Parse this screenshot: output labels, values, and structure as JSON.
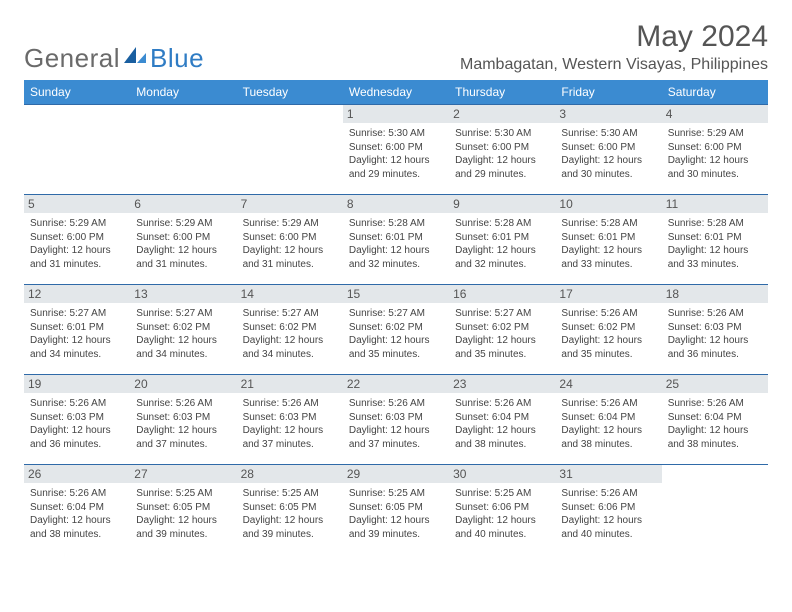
{
  "brand": {
    "part1": "General",
    "part2": "Blue"
  },
  "title": "May 2024",
  "location": "Mambagatan, Western Visayas, Philippines",
  "colors": {
    "header_bg": "#3b8bd1",
    "header_text": "#ffffff",
    "daynum_bg": "#e3e7ea",
    "row_border": "#2f6aa8",
    "title_color": "#555555",
    "logo_gray": "#6a6a6a",
    "logo_blue": "#2f7cc4",
    "body_text": "#444444"
  },
  "weekdays": [
    "Sunday",
    "Monday",
    "Tuesday",
    "Wednesday",
    "Thursday",
    "Friday",
    "Saturday"
  ],
  "weeks": [
    [
      null,
      null,
      null,
      {
        "day": "1",
        "sunrise": "5:30 AM",
        "sunset": "6:00 PM",
        "daylight": "12 hours and 29 minutes."
      },
      {
        "day": "2",
        "sunrise": "5:30 AM",
        "sunset": "6:00 PM",
        "daylight": "12 hours and 29 minutes."
      },
      {
        "day": "3",
        "sunrise": "5:30 AM",
        "sunset": "6:00 PM",
        "daylight": "12 hours and 30 minutes."
      },
      {
        "day": "4",
        "sunrise": "5:29 AM",
        "sunset": "6:00 PM",
        "daylight": "12 hours and 30 minutes."
      }
    ],
    [
      {
        "day": "5",
        "sunrise": "5:29 AM",
        "sunset": "6:00 PM",
        "daylight": "12 hours and 31 minutes."
      },
      {
        "day": "6",
        "sunrise": "5:29 AM",
        "sunset": "6:00 PM",
        "daylight": "12 hours and 31 minutes."
      },
      {
        "day": "7",
        "sunrise": "5:29 AM",
        "sunset": "6:00 PM",
        "daylight": "12 hours and 31 minutes."
      },
      {
        "day": "8",
        "sunrise": "5:28 AM",
        "sunset": "6:01 PM",
        "daylight": "12 hours and 32 minutes."
      },
      {
        "day": "9",
        "sunrise": "5:28 AM",
        "sunset": "6:01 PM",
        "daylight": "12 hours and 32 minutes."
      },
      {
        "day": "10",
        "sunrise": "5:28 AM",
        "sunset": "6:01 PM",
        "daylight": "12 hours and 33 minutes."
      },
      {
        "day": "11",
        "sunrise": "5:28 AM",
        "sunset": "6:01 PM",
        "daylight": "12 hours and 33 minutes."
      }
    ],
    [
      {
        "day": "12",
        "sunrise": "5:27 AM",
        "sunset": "6:01 PM",
        "daylight": "12 hours and 34 minutes."
      },
      {
        "day": "13",
        "sunrise": "5:27 AM",
        "sunset": "6:02 PM",
        "daylight": "12 hours and 34 minutes."
      },
      {
        "day": "14",
        "sunrise": "5:27 AM",
        "sunset": "6:02 PM",
        "daylight": "12 hours and 34 minutes."
      },
      {
        "day": "15",
        "sunrise": "5:27 AM",
        "sunset": "6:02 PM",
        "daylight": "12 hours and 35 minutes."
      },
      {
        "day": "16",
        "sunrise": "5:27 AM",
        "sunset": "6:02 PM",
        "daylight": "12 hours and 35 minutes."
      },
      {
        "day": "17",
        "sunrise": "5:26 AM",
        "sunset": "6:02 PM",
        "daylight": "12 hours and 35 minutes."
      },
      {
        "day": "18",
        "sunrise": "5:26 AM",
        "sunset": "6:03 PM",
        "daylight": "12 hours and 36 minutes."
      }
    ],
    [
      {
        "day": "19",
        "sunrise": "5:26 AM",
        "sunset": "6:03 PM",
        "daylight": "12 hours and 36 minutes."
      },
      {
        "day": "20",
        "sunrise": "5:26 AM",
        "sunset": "6:03 PM",
        "daylight": "12 hours and 37 minutes."
      },
      {
        "day": "21",
        "sunrise": "5:26 AM",
        "sunset": "6:03 PM",
        "daylight": "12 hours and 37 minutes."
      },
      {
        "day": "22",
        "sunrise": "5:26 AM",
        "sunset": "6:03 PM",
        "daylight": "12 hours and 37 minutes."
      },
      {
        "day": "23",
        "sunrise": "5:26 AM",
        "sunset": "6:04 PM",
        "daylight": "12 hours and 38 minutes."
      },
      {
        "day": "24",
        "sunrise": "5:26 AM",
        "sunset": "6:04 PM",
        "daylight": "12 hours and 38 minutes."
      },
      {
        "day": "25",
        "sunrise": "5:26 AM",
        "sunset": "6:04 PM",
        "daylight": "12 hours and 38 minutes."
      }
    ],
    [
      {
        "day": "26",
        "sunrise": "5:26 AM",
        "sunset": "6:04 PM",
        "daylight": "12 hours and 38 minutes."
      },
      {
        "day": "27",
        "sunrise": "5:25 AM",
        "sunset": "6:05 PM",
        "daylight": "12 hours and 39 minutes."
      },
      {
        "day": "28",
        "sunrise": "5:25 AM",
        "sunset": "6:05 PM",
        "daylight": "12 hours and 39 minutes."
      },
      {
        "day": "29",
        "sunrise": "5:25 AM",
        "sunset": "6:05 PM",
        "daylight": "12 hours and 39 minutes."
      },
      {
        "day": "30",
        "sunrise": "5:25 AM",
        "sunset": "6:06 PM",
        "daylight": "12 hours and 40 minutes."
      },
      {
        "day": "31",
        "sunrise": "5:26 AM",
        "sunset": "6:06 PM",
        "daylight": "12 hours and 40 minutes."
      },
      null
    ]
  ],
  "labels": {
    "sunrise": "Sunrise: ",
    "sunset": "Sunset: ",
    "daylight": "Daylight: "
  }
}
